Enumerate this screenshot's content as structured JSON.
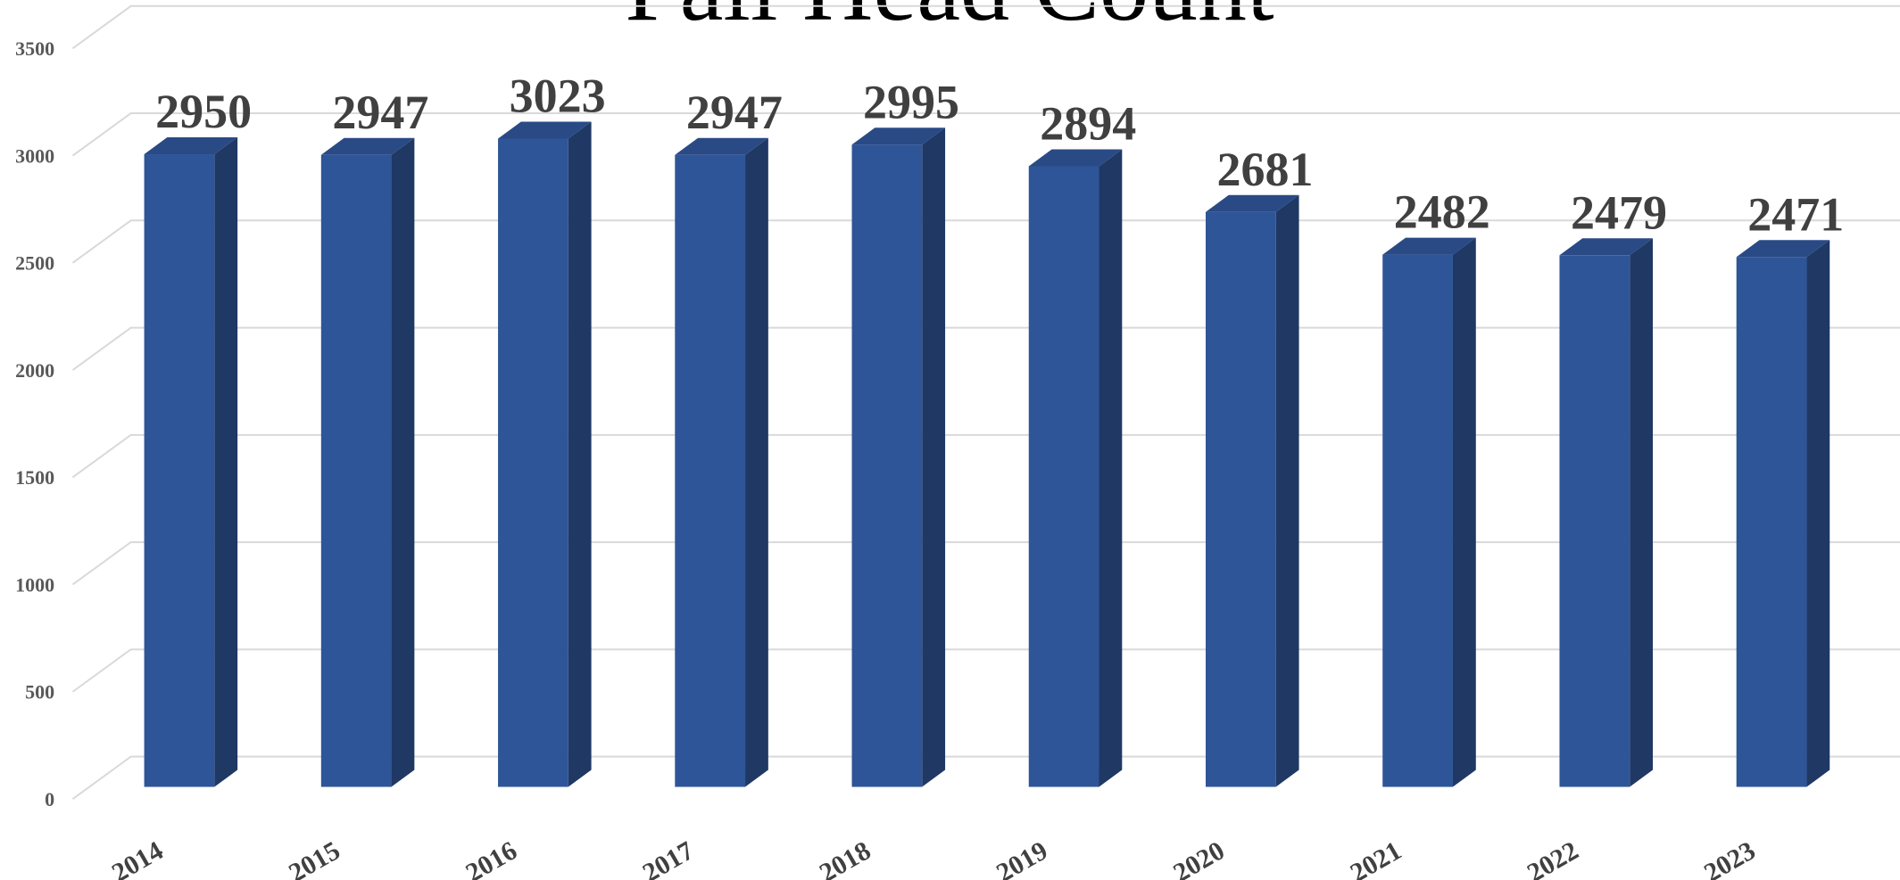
{
  "chart_data": {
    "type": "bar",
    "title": "Fall Head Count",
    "categories": [
      "2014",
      "2015",
      "2016",
      "2017",
      "2018",
      "2019",
      "2020",
      "2021",
      "2022",
      "2023"
    ],
    "values": [
      2950,
      2947,
      3023,
      2947,
      2995,
      2894,
      2681,
      2482,
      2479,
      2471
    ],
    "color": "#2e5597",
    "ylim": [
      0,
      3500
    ],
    "yticks": [
      0,
      500,
      1000,
      1500,
      2000,
      2500,
      3000,
      3500
    ],
    "grid": true
  }
}
